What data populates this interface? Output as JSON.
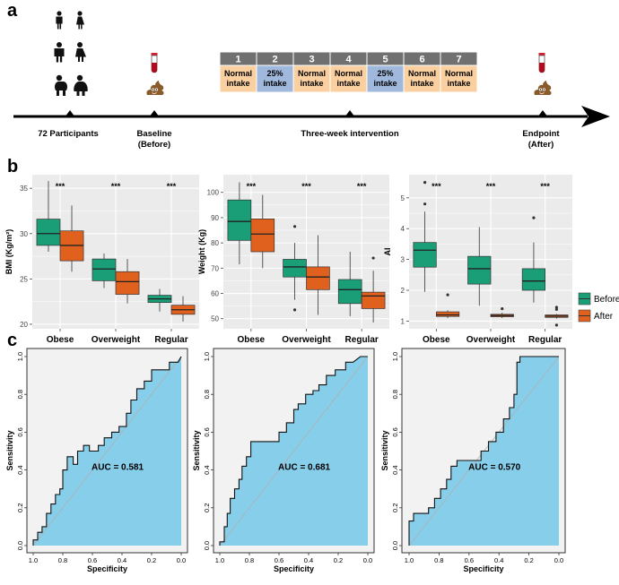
{
  "panels": {
    "a": "a",
    "b": "b",
    "c": "c"
  },
  "colors": {
    "before": "#1a9e77",
    "after": "#e0611e",
    "normal": "#fbd0a1",
    "reduced": "#9fb8dc",
    "roc_fill": "#87ceeb",
    "plot_bg": "#ebebeb",
    "grid": "#ffffff",
    "day_header": "#707070"
  },
  "timeline": {
    "participants": "72 Participants",
    "baseline": [
      "Baseline",
      "(Before)"
    ],
    "intervention": "Three-week intervention",
    "endpoint": [
      "Endpoint",
      "(After)"
    ],
    "days": [
      {
        "num": "1",
        "label": [
          "Normal",
          "intake"
        ],
        "kind": "normal"
      },
      {
        "num": "2",
        "label": [
          "25%",
          "intake"
        ],
        "kind": "reduced"
      },
      {
        "num": "3",
        "label": [
          "Normal",
          "intake"
        ],
        "kind": "normal"
      },
      {
        "num": "4",
        "label": [
          "Normal",
          "intake"
        ],
        "kind": "normal"
      },
      {
        "num": "5",
        "label": [
          "25%",
          "intake"
        ],
        "kind": "reduced"
      },
      {
        "num": "6",
        "label": [
          "Normal",
          "intake"
        ],
        "kind": "normal"
      },
      {
        "num": "7",
        "label": [
          "Normal",
          "intake"
        ],
        "kind": "normal"
      }
    ]
  },
  "legend": {
    "before": "Before",
    "after": "After"
  },
  "chart_data": [
    {
      "type": "boxplot",
      "ylabel": "BMI (Kg/m²)",
      "ylim": [
        19.5,
        36.5
      ],
      "yticks": [
        20,
        25,
        30,
        35
      ],
      "categories": [
        "Obese",
        "Overweight",
        "Regular"
      ],
      "significance": [
        "***",
        "***",
        "***"
      ],
      "series": [
        {
          "name": "Before",
          "boxes": [
            {
              "min": 28.0,
              "q1": 28.7,
              "median": 30.0,
              "q3": 31.6,
              "max": 35.8,
              "outliers": []
            },
            {
              "min": 24.0,
              "q1": 24.8,
              "median": 26.1,
              "q3": 27.2,
              "max": 27.8,
              "outliers": []
            },
            {
              "min": 21.4,
              "q1": 22.4,
              "median": 22.8,
              "q3": 23.2,
              "max": 23.9,
              "outliers": []
            }
          ]
        },
        {
          "name": "After",
          "boxes": [
            {
              "min": 25.8,
              "q1": 27.0,
              "median": 28.7,
              "q3": 30.3,
              "max": 33.1,
              "outliers": []
            },
            {
              "min": 22.3,
              "q1": 23.3,
              "median": 24.7,
              "q3": 25.8,
              "max": 27.2,
              "outliers": []
            },
            {
              "min": 20.3,
              "q1": 21.1,
              "median": 21.6,
              "q3": 22.1,
              "max": 23.1,
              "outliers": []
            }
          ]
        }
      ]
    },
    {
      "type": "boxplot",
      "ylabel": "Weight (Kg)",
      "ylim": [
        46,
        107
      ],
      "yticks": [
        50,
        60,
        70,
        80,
        90,
        100
      ],
      "categories": [
        "Obese",
        "Overweight",
        "Regular"
      ],
      "significance": [
        "***",
        "***",
        "***"
      ],
      "series": [
        {
          "name": "Before",
          "boxes": [
            {
              "min": 71.5,
              "q1": 81.0,
              "median": 88.5,
              "q3": 97.0,
              "max": 104.0,
              "outliers": []
            },
            {
              "min": 57.5,
              "q1": 66.5,
              "median": 70.5,
              "q3": 73.5,
              "max": 80.0,
              "outliers": [
                86.5,
                53.5
              ]
            },
            {
              "min": 51.0,
              "q1": 56.0,
              "median": 61.5,
              "q3": 65.5,
              "max": 76.5,
              "outliers": []
            }
          ]
        },
        {
          "name": "After",
          "boxes": [
            {
              "min": 70.0,
              "q1": 76.5,
              "median": 83.5,
              "q3": 89.5,
              "max": 99.0,
              "outliers": []
            },
            {
              "min": 51.5,
              "q1": 61.5,
              "median": 66.5,
              "q3": 70.5,
              "max": 83.0,
              "outliers": []
            },
            {
              "min": 48.5,
              "q1": 54.0,
              "median": 59.0,
              "q3": 60.5,
              "max": 69.0,
              "outliers": [
                74.0
              ]
            }
          ]
        }
      ]
    },
    {
      "type": "boxplot",
      "ylabel": "AI",
      "ylim": [
        0.75,
        5.75
      ],
      "yticks": [
        1,
        2,
        3,
        4,
        5
      ],
      "categories": [
        "Obese",
        "Overweight",
        "Regular"
      ],
      "significance": [
        "***",
        "***",
        "***"
      ],
      "series": [
        {
          "name": "Before",
          "boxes": [
            {
              "min": 1.95,
              "q1": 2.75,
              "median": 3.3,
              "q3": 3.55,
              "max": 4.55,
              "outliers": [
                5.5,
                4.8
              ]
            },
            {
              "min": 1.5,
              "q1": 2.2,
              "median": 2.7,
              "q3": 3.1,
              "max": 4.05,
              "outliers": []
            },
            {
              "min": 1.6,
              "q1": 2.0,
              "median": 2.3,
              "q3": 2.7,
              "max": 3.55,
              "outliers": [
                4.35
              ]
            }
          ]
        },
        {
          "name": "After",
          "boxes": [
            {
              "min": 1.1,
              "q1": 1.15,
              "median": 1.2,
              "q3": 1.3,
              "max": 1.35,
              "outliers": [
                1.85
              ]
            },
            {
              "min": 1.1,
              "q1": 1.14,
              "median": 1.18,
              "q3": 1.22,
              "max": 1.27,
              "outliers": [
                1.4
              ]
            },
            {
              "min": 1.08,
              "q1": 1.12,
              "median": 1.16,
              "q3": 1.2,
              "max": 1.23,
              "outliers": [
                1.45,
                1.38,
                0.87
              ]
            }
          ]
        }
      ]
    },
    {
      "type": "roc",
      "xlabel": "Specificity",
      "ylabel": "Sensitivity",
      "auc_label": "AUC = 0.581",
      "xlim": [
        1.0,
        0.0
      ],
      "ylim": [
        0.0,
        1.0
      ],
      "xticks": [
        "1.0",
        "0.8",
        "0.6",
        "0.4",
        "0.2",
        "0.0"
      ],
      "yticks": [
        "0.0",
        "0.2",
        "0.4",
        "0.6",
        "0.8",
        "1.0"
      ],
      "curve": [
        [
          1.0,
          0.0
        ],
        [
          1.0,
          0.03
        ],
        [
          0.97,
          0.03
        ],
        [
          0.97,
          0.07
        ],
        [
          0.94,
          0.07
        ],
        [
          0.94,
          0.1
        ],
        [
          0.91,
          0.1
        ],
        [
          0.91,
          0.17
        ],
        [
          0.88,
          0.17
        ],
        [
          0.88,
          0.22
        ],
        [
          0.85,
          0.22
        ],
        [
          0.85,
          0.27
        ],
        [
          0.82,
          0.27
        ],
        [
          0.82,
          0.3
        ],
        [
          0.8,
          0.3
        ],
        [
          0.8,
          0.4
        ],
        [
          0.77,
          0.4
        ],
        [
          0.77,
          0.47
        ],
        [
          0.73,
          0.47
        ],
        [
          0.73,
          0.43
        ],
        [
          0.7,
          0.43
        ],
        [
          0.7,
          0.5
        ],
        [
          0.66,
          0.5
        ],
        [
          0.66,
          0.53
        ],
        [
          0.62,
          0.53
        ],
        [
          0.62,
          0.5
        ],
        [
          0.56,
          0.5
        ],
        [
          0.56,
          0.53
        ],
        [
          0.52,
          0.53
        ],
        [
          0.52,
          0.57
        ],
        [
          0.47,
          0.57
        ],
        [
          0.47,
          0.6
        ],
        [
          0.42,
          0.6
        ],
        [
          0.42,
          0.63
        ],
        [
          0.37,
          0.63
        ],
        [
          0.37,
          0.7
        ],
        [
          0.34,
          0.7
        ],
        [
          0.34,
          0.77
        ],
        [
          0.3,
          0.77
        ],
        [
          0.3,
          0.83
        ],
        [
          0.25,
          0.83
        ],
        [
          0.25,
          0.87
        ],
        [
          0.2,
          0.87
        ],
        [
          0.2,
          0.93
        ],
        [
          0.08,
          0.93
        ],
        [
          0.08,
          0.97
        ],
        [
          0.02,
          0.97
        ],
        [
          0.0,
          1.0
        ]
      ]
    },
    {
      "type": "roc",
      "xlabel": "Specificity",
      "ylabel": "Sensitivity",
      "auc_label": "AUC = 0.681",
      "xlim": [
        1.0,
        0.0
      ],
      "ylim": [
        0.0,
        1.0
      ],
      "xticks": [
        "1.0",
        "0.8",
        "0.6",
        "0.4",
        "0.2",
        "0.0"
      ],
      "yticks": [
        "0.0",
        "0.2",
        "0.4",
        "0.6",
        "0.8",
        "1.0"
      ],
      "curve": [
        [
          1.0,
          0.0
        ],
        [
          1.0,
          0.02
        ],
        [
          0.97,
          0.02
        ],
        [
          0.97,
          0.1
        ],
        [
          0.95,
          0.1
        ],
        [
          0.95,
          0.17
        ],
        [
          0.93,
          0.17
        ],
        [
          0.93,
          0.25
        ],
        [
          0.9,
          0.25
        ],
        [
          0.9,
          0.3
        ],
        [
          0.87,
          0.3
        ],
        [
          0.87,
          0.35
        ],
        [
          0.85,
          0.35
        ],
        [
          0.85,
          0.42
        ],
        [
          0.82,
          0.42
        ],
        [
          0.82,
          0.47
        ],
        [
          0.79,
          0.47
        ],
        [
          0.79,
          0.55
        ],
        [
          0.6,
          0.55
        ],
        [
          0.6,
          0.6
        ],
        [
          0.55,
          0.6
        ],
        [
          0.55,
          0.65
        ],
        [
          0.5,
          0.65
        ],
        [
          0.5,
          0.72
        ],
        [
          0.47,
          0.72
        ],
        [
          0.47,
          0.75
        ],
        [
          0.42,
          0.75
        ],
        [
          0.42,
          0.8
        ],
        [
          0.37,
          0.8
        ],
        [
          0.37,
          0.82
        ],
        [
          0.33,
          0.82
        ],
        [
          0.33,
          0.85
        ],
        [
          0.28,
          0.85
        ],
        [
          0.28,
          0.9
        ],
        [
          0.22,
          0.9
        ],
        [
          0.22,
          0.93
        ],
        [
          0.15,
          0.93
        ],
        [
          0.15,
          0.97
        ],
        [
          0.1,
          0.97
        ],
        [
          0.05,
          1.0
        ],
        [
          0.0,
          1.0
        ]
      ]
    },
    {
      "type": "roc",
      "xlabel": "Specificity",
      "ylabel": "Sensitivity",
      "auc_label": "AUC = 0.570",
      "xlim": [
        1.0,
        0.0
      ],
      "ylim": [
        0.0,
        1.0
      ],
      "xticks": [
        "1.0",
        "0.8",
        "0.6",
        "0.4",
        "0.2",
        "0.0"
      ],
      "yticks": [
        "0.0",
        "0.2",
        "0.4",
        "0.6",
        "0.8",
        "1.0"
      ],
      "curve": [
        [
          1.0,
          0.0
        ],
        [
          1.0,
          0.13
        ],
        [
          0.97,
          0.13
        ],
        [
          0.97,
          0.17
        ],
        [
          0.87,
          0.17
        ],
        [
          0.87,
          0.2
        ],
        [
          0.83,
          0.2
        ],
        [
          0.83,
          0.25
        ],
        [
          0.79,
          0.25
        ],
        [
          0.79,
          0.3
        ],
        [
          0.75,
          0.3
        ],
        [
          0.75,
          0.35
        ],
        [
          0.72,
          0.35
        ],
        [
          0.72,
          0.42
        ],
        [
          0.68,
          0.42
        ],
        [
          0.68,
          0.45
        ],
        [
          0.52,
          0.45
        ],
        [
          0.52,
          0.5
        ],
        [
          0.47,
          0.5
        ],
        [
          0.47,
          0.55
        ],
        [
          0.42,
          0.55
        ],
        [
          0.42,
          0.6
        ],
        [
          0.37,
          0.6
        ],
        [
          0.37,
          0.67
        ],
        [
          0.33,
          0.67
        ],
        [
          0.33,
          0.73
        ],
        [
          0.3,
          0.73
        ],
        [
          0.3,
          0.8
        ],
        [
          0.28,
          0.8
        ],
        [
          0.28,
          0.97
        ],
        [
          0.26,
          0.97
        ],
        [
          0.26,
          1.0
        ],
        [
          0.0,
          1.0
        ]
      ]
    }
  ]
}
